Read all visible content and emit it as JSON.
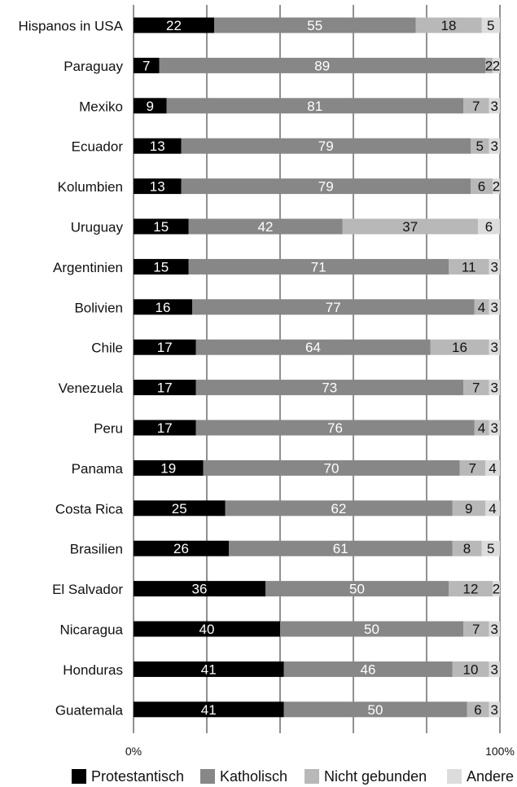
{
  "chart_data": {
    "type": "bar",
    "orientation": "horizontal",
    "stacked": true,
    "categories": [
      "Hispanos in USA",
      "Paraguay",
      "Mexiko",
      "Ecuador",
      "Kolumbien",
      "Uruguay",
      "Argentinien",
      "Bolivien",
      "Chile",
      "Venezuela",
      "Peru",
      "Panama",
      "Costa Rica",
      "Brasilien",
      "El Salvador",
      "Nicaragua",
      "Honduras",
      "Guatemala"
    ],
    "series": [
      {
        "name": "Protestantisch",
        "color": "#000000",
        "label_color": "#ffffff",
        "values": [
          22,
          7,
          9,
          13,
          13,
          15,
          15,
          16,
          17,
          17,
          17,
          19,
          25,
          26,
          36,
          40,
          41,
          41
        ]
      },
      {
        "name": "Katholisch",
        "color": "#878787",
        "label_color": "#ffffff",
        "values": [
          55,
          89,
          81,
          79,
          79,
          42,
          71,
          77,
          64,
          73,
          76,
          70,
          62,
          61,
          50,
          50,
          46,
          50
        ]
      },
      {
        "name": "Nicht gebunden",
        "color": "#b8b8b8",
        "label_color": "#111111",
        "values": [
          18,
          2,
          7,
          5,
          6,
          37,
          11,
          4,
          16,
          7,
          4,
          7,
          9,
          8,
          12,
          7,
          10,
          6
        ]
      },
      {
        "name": "Andere",
        "color": "#dcdcdc",
        "label_color": "#111111",
        "values": [
          5,
          2,
          3,
          3,
          2,
          6,
          3,
          3,
          3,
          3,
          3,
          4,
          4,
          5,
          2,
          3,
          3,
          3
        ]
      }
    ],
    "xlim": [
      0,
      100
    ],
    "x_tick_labels": [
      "0%",
      "100%"
    ],
    "grid": true,
    "legend_position": "bottom"
  }
}
